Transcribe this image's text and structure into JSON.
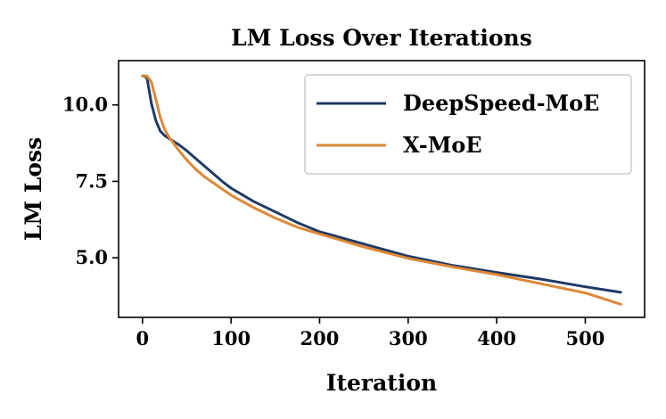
{
  "chart_data": {
    "type": "line",
    "title": "LM Loss Over Iterations",
    "xlabel": "Iteration",
    "ylabel": "LM Loss",
    "xlim": [
      -27,
      567
    ],
    "ylim": [
      3.05,
      11.45
    ],
    "xticks": [
      0,
      100,
      200,
      300,
      400,
      500
    ],
    "xtick_labels": [
      "0",
      "100",
      "200",
      "300",
      "400",
      "500"
    ],
    "yticks": [
      5.0,
      7.5,
      10.0
    ],
    "ytick_labels": [
      "5.0",
      "7.5",
      "10.0"
    ],
    "grid": false,
    "legend_position": "top-right",
    "series": [
      {
        "name": "DeepSpeed-MoE",
        "color": "#1f3a64",
        "x": [
          0,
          5,
          10,
          15,
          20,
          25,
          30,
          40,
          50,
          60,
          70,
          80,
          90,
          100,
          125,
          150,
          175,
          200,
          250,
          300,
          350,
          400,
          450,
          500,
          540
        ],
        "y": [
          10.95,
          10.9,
          10.05,
          9.5,
          9.15,
          9.0,
          8.9,
          8.72,
          8.5,
          8.25,
          8.0,
          7.75,
          7.5,
          7.28,
          6.85,
          6.5,
          6.15,
          5.85,
          5.45,
          5.05,
          4.75,
          4.52,
          4.3,
          4.05,
          3.87
        ]
      },
      {
        "name": "X-MoE",
        "color": "#de8836",
        "x": [
          0,
          5,
          10,
          15,
          20,
          25,
          30,
          40,
          50,
          60,
          70,
          80,
          90,
          100,
          125,
          150,
          175,
          200,
          250,
          300,
          350,
          400,
          450,
          500,
          540
        ],
        "y": [
          10.95,
          10.95,
          10.75,
          10.2,
          9.6,
          9.2,
          8.95,
          8.55,
          8.2,
          7.9,
          7.65,
          7.45,
          7.25,
          7.05,
          6.65,
          6.3,
          6.0,
          5.78,
          5.35,
          4.98,
          4.7,
          4.45,
          4.15,
          3.85,
          3.48
        ]
      }
    ]
  }
}
